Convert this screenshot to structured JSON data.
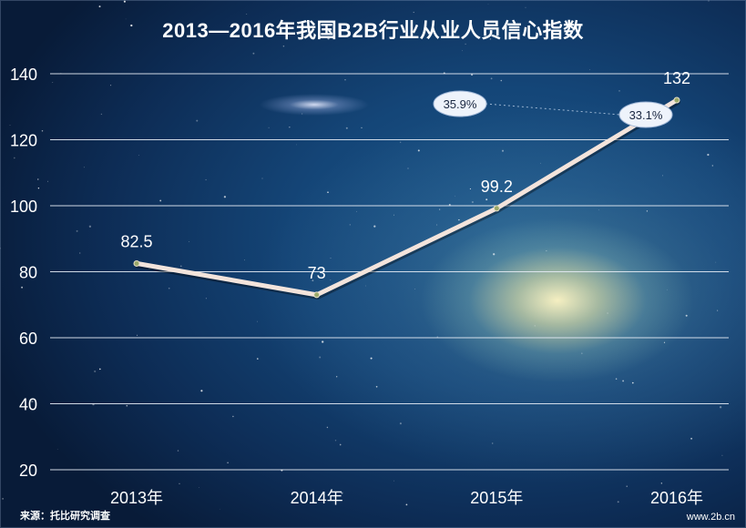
{
  "title": "2013—2016年我国B2B行业从业人员信心指数",
  "footer": {
    "source": "来源：托比研究调查",
    "site": "www.2b.cn"
  },
  "colors": {
    "line": "#f3e4dc",
    "grid": "#e6ecf5",
    "text": "#ffffff",
    "bubble_fill": "#eef3fb",
    "bubble_text": "#1a2740"
  },
  "chart_data": {
    "type": "line",
    "categories": [
      "2013年",
      "2014年",
      "2015年",
      "2016年"
    ],
    "series": [
      {
        "values": [
          82.5,
          73,
          99.2,
          132
        ]
      }
    ],
    "value_labels": [
      "82.5",
      "73",
      "99.2",
      "132"
    ],
    "yticks": [
      20,
      40,
      60,
      80,
      100,
      120,
      140
    ],
    "ylim": [
      15,
      145
    ],
    "grid": true,
    "annotations": [
      "35.9%",
      "33.1%"
    ]
  }
}
